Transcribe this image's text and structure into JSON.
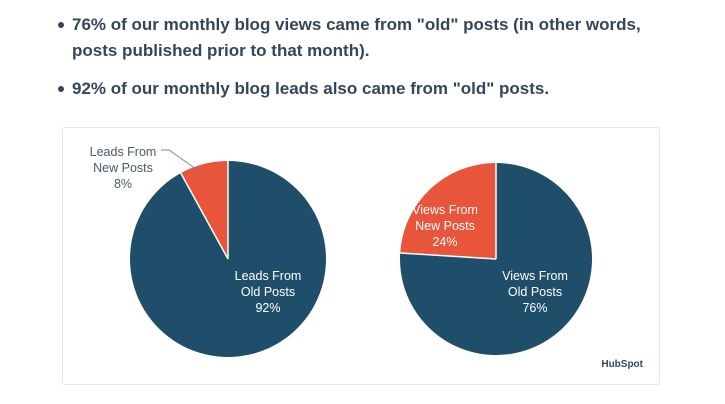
{
  "bullets": [
    {
      "line1": "76% of our monthly blog views came from \"old\" posts (in other words,",
      "line2": "posts published prior to that month)."
    },
    {
      "line1": "92% of our monthly blog leads also came from \"old\" posts."
    }
  ],
  "chart_data": [
    {
      "type": "pie",
      "slices": [
        {
          "label_lines": [
            "Leads From",
            "Old Posts"
          ],
          "value": 92,
          "value_label": "92%",
          "color": "#1f4e6b"
        },
        {
          "label_lines": [
            "Leads From",
            "New Posts"
          ],
          "value": 8,
          "value_label": "8%",
          "color": "#e8553a"
        }
      ]
    },
    {
      "type": "pie",
      "slices": [
        {
          "label_lines": [
            "Views From",
            "Old Posts"
          ],
          "value": 76,
          "value_label": "76%",
          "color": "#1f4e6b"
        },
        {
          "label_lines": [
            "Views From",
            "New Posts"
          ],
          "value": 24,
          "value_label": "24%",
          "color": "#e8553a"
        }
      ]
    }
  ],
  "brand": "HubSpot"
}
